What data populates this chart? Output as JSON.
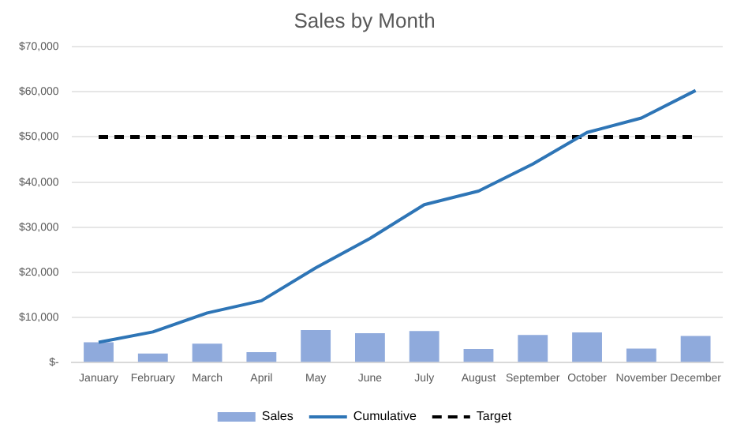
{
  "chart_data": {
    "type": "bar",
    "title": "Sales by Month",
    "categories": [
      "January",
      "February",
      "March",
      "April",
      "May",
      "June",
      "July",
      "August",
      "September",
      "October",
      "November",
      "December"
    ],
    "series": [
      {
        "name": "Sales",
        "color": "#8faadc",
        "values": [
          4500,
          2000,
          4200,
          2300,
          7200,
          6500,
          7000,
          3000,
          6100,
          6700,
          3100,
          5900
        ]
      },
      {
        "name": "Cumulative",
        "type": "line",
        "color": "#2e75b6",
        "line_style": "solid",
        "values": [
          4500,
          6800,
          11000,
          13700,
          21000,
          27500,
          35000,
          38000,
          44000,
          51000,
          54200,
          60300
        ]
      },
      {
        "name": "Target",
        "type": "line",
        "color": "#000000",
        "line_style": "dashed",
        "values": [
          50000,
          50000,
          50000,
          50000,
          50000,
          50000,
          50000,
          50000,
          50000,
          50000,
          50000,
          50000
        ]
      }
    ],
    "ylim": [
      0,
      70000
    ],
    "yticks": [
      {
        "value": 0,
        "label": "$-"
      },
      {
        "value": 10000,
        "label": "$10,000"
      },
      {
        "value": 20000,
        "label": "$20,000"
      },
      {
        "value": 30000,
        "label": "$30,000"
      },
      {
        "value": 40000,
        "label": "$40,000"
      },
      {
        "value": 50000,
        "label": "$50,000"
      },
      {
        "value": 60000,
        "label": "$60,000"
      },
      {
        "value": 70000,
        "label": "$70,000"
      }
    ],
    "grid": "y",
    "legend": "bottom",
    "marker": "none"
  }
}
